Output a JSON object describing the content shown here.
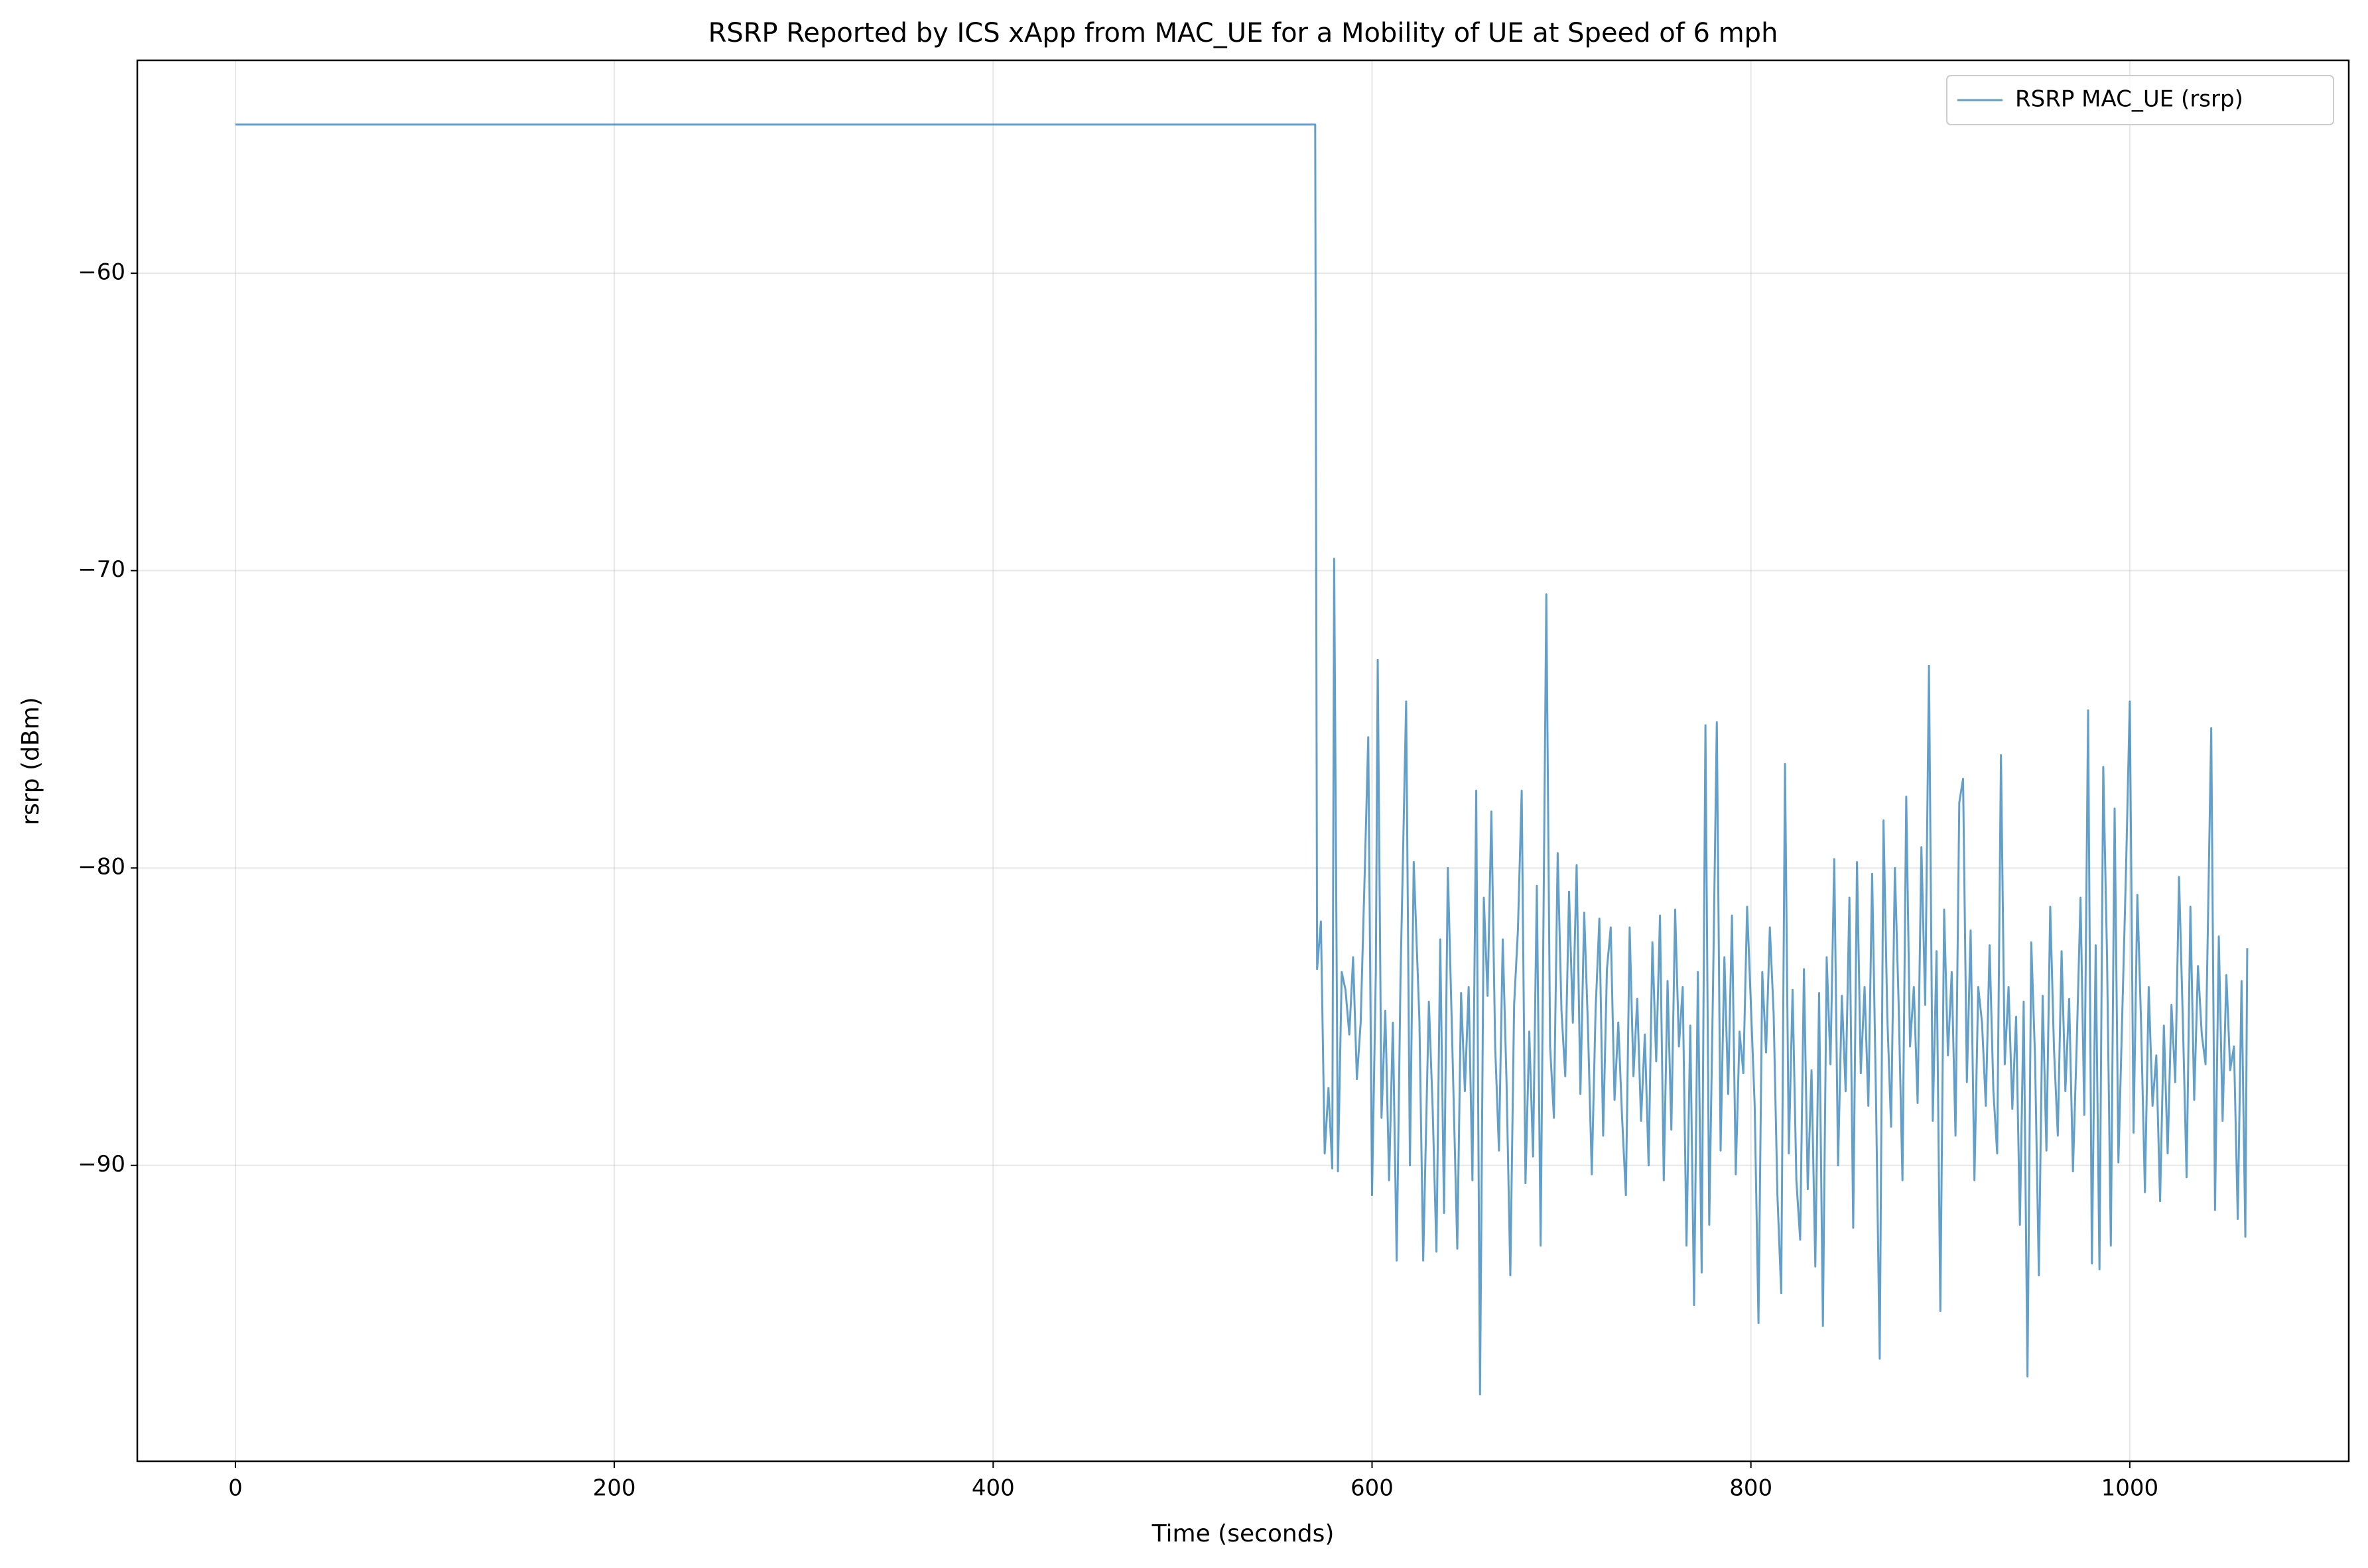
{
  "chart_data": {
    "type": "line",
    "title": "RSRP Reported by ICS xApp from MAC_UE for a Mobility of UE at Speed of 6 mph",
    "x_label": "Time (seconds)",
    "y_label": "rsrp (dBm)",
    "xlim": [
      -51.8,
      1115.6
    ],
    "ylim": [
      -99.95,
      -52.84
    ],
    "xticks": [
      0,
      200,
      400,
      600,
      800,
      1000
    ],
    "yticks": [
      {
        "value": -90,
        "label": "−90"
      },
      {
        "value": -80,
        "label": "−80"
      },
      {
        "value": -70,
        "label": "−70"
      },
      {
        "value": -60,
        "label": "−60"
      }
    ],
    "grid": true,
    "legend": "upper right",
    "x": [
      0,
      570,
      571,
      573,
      575,
      577,
      579,
      580,
      582,
      584,
      586,
      588,
      590,
      592,
      594,
      596,
      598,
      600,
      602,
      603,
      605,
      607,
      609,
      611,
      613,
      615,
      618,
      620,
      622,
      625,
      627,
      630,
      632,
      634,
      636,
      638,
      640,
      642,
      645,
      647,
      649,
      651,
      653,
      655,
      657,
      659,
      661,
      663,
      665,
      667,
      669,
      671,
      673,
      675,
      677,
      679,
      681,
      683,
      685,
      687,
      689,
      692,
      694,
      696,
      698,
      700,
      702,
      704,
      706,
      708,
      710,
      712,
      714,
      716,
      718,
      720,
      722,
      724,
      726,
      728,
      730,
      732,
      734,
      736,
      738,
      740,
      742,
      744,
      746,
      748,
      750,
      752,
      754,
      756,
      758,
      760,
      762,
      764,
      766,
      768,
      770,
      772,
      774,
      776,
      778,
      780,
      782,
      784,
      786,
      788,
      790,
      792,
      794,
      796,
      798,
      800,
      802,
      804,
      806,
      808,
      810,
      812,
      814,
      816,
      818,
      820,
      822,
      824,
      826,
      828,
      830,
      832,
      834,
      836,
      838,
      840,
      842,
      844,
      846,
      848,
      850,
      852,
      854,
      856,
      858,
      860,
      862,
      864,
      866,
      868,
      870,
      872,
      874,
      876,
      878,
      880,
      882,
      884,
      886,
      888,
      890,
      892,
      894,
      896,
      898,
      900,
      902,
      904,
      906,
      908,
      910,
      912,
      914,
      916,
      918,
      920,
      922,
      924,
      926,
      928,
      930,
      932,
      934,
      936,
      938,
      940,
      942,
      944,
      946,
      948,
      950,
      952,
      954,
      956,
      958,
      960,
      962,
      964,
      966,
      968,
      970,
      972,
      974,
      976,
      978,
      980,
      982,
      984,
      986,
      988,
      990,
      992,
      994,
      996,
      998,
      1000,
      1002,
      1004,
      1006,
      1008,
      1010,
      1012,
      1014,
      1016,
      1018,
      1020,
      1022,
      1024,
      1026,
      1028,
      1030,
      1032,
      1034,
      1036,
      1038,
      1040,
      1043,
      1045,
      1047,
      1049,
      1051,
      1053,
      1055,
      1057,
      1059,
      1061,
      1062
    ],
    "series": [
      {
        "name": "RSRP MAC_UE (rsrp)",
        "color": "#1f77b4",
        "values": [
          -55,
          -55,
          -83.4,
          -81.8,
          -89.6,
          -87.4,
          -90.1,
          -69.6,
          -90.2,
          -83.5,
          -84.1,
          -85.6,
          -83.0,
          -87.1,
          -85.2,
          -80.5,
          -75.6,
          -91.0,
          -83.5,
          -73.0,
          -88.4,
          -84.8,
          -90.5,
          -85.2,
          -93.2,
          -83.8,
          -74.4,
          -90.0,
          -79.8,
          -85.1,
          -93.2,
          -84.5,
          -88.1,
          -92.9,
          -82.4,
          -91.6,
          -80.0,
          -85.0,
          -92.8,
          -84.2,
          -87.5,
          -84.0,
          -90.5,
          -77.4,
          -97.7,
          -81.0,
          -84.3,
          -78.1,
          -86.0,
          -89.5,
          -82.4,
          -87.2,
          -93.7,
          -84.6,
          -82.1,
          -77.4,
          -90.6,
          -85.5,
          -89.7,
          -80.6,
          -92.7,
          -70.8,
          -86.0,
          -88.4,
          -79.5,
          -84.8,
          -87.0,
          -80.8,
          -85.2,
          -79.9,
          -87.6,
          -81.5,
          -85.4,
          -90.3,
          -84.8,
          -81.7,
          -89.0,
          -83.4,
          -82.0,
          -87.8,
          -85.2,
          -88.4,
          -91.0,
          -82.0,
          -87.0,
          -84.4,
          -88.5,
          -85.6,
          -90.0,
          -82.5,
          -86.5,
          -81.6,
          -90.5,
          -83.8,
          -88.8,
          -81.4,
          -86.0,
          -84.0,
          -92.7,
          -85.3,
          -94.7,
          -83.5,
          -93.6,
          -75.2,
          -92.0,
          -84.0,
          -75.1,
          -89.5,
          -83.0,
          -87.6,
          -81.6,
          -90.3,
          -85.5,
          -86.9,
          -81.3,
          -84.6,
          -88.0,
          -95.3,
          -83.5,
          -86.2,
          -82.0,
          -84.9,
          -91.0,
          -94.3,
          -76.5,
          -89.6,
          -84.1,
          -90.5,
          -92.5,
          -83.4,
          -90.8,
          -86.8,
          -93.4,
          -84.2,
          -95.4,
          -83.0,
          -86.6,
          -79.7,
          -90.0,
          -84.3,
          -87.5,
          -81.0,
          -92.1,
          -79.8,
          -86.9,
          -84.0,
          -88.0,
          -80.2,
          -87.6,
          -96.5,
          -78.4,
          -85.0,
          -88.7,
          -80.0,
          -84.6,
          -90.5,
          -77.6,
          -86.0,
          -84.0,
          -87.9,
          -79.3,
          -84.6,
          -73.2,
          -88.5,
          -82.8,
          -94.9,
          -81.4,
          -86.3,
          -83.5,
          -89.0,
          -77.8,
          -77.0,
          -87.2,
          -82.1,
          -90.5,
          -84.0,
          -85.2,
          -88.0,
          -82.6,
          -87.5,
          -89.6,
          -76.2,
          -86.6,
          -84.0,
          -88.1,
          -85.0,
          -92.0,
          -84.5,
          -97.1,
          -82.5,
          -86.4,
          -93.7,
          -84.3,
          -89.5,
          -81.3,
          -86.1,
          -89.0,
          -82.8,
          -87.5,
          -84.4,
          -90.2,
          -85.9,
          -81.0,
          -88.3,
          -74.7,
          -93.3,
          -82.6,
          -93.5,
          -76.6,
          -83.0,
          -92.7,
          -78.0,
          -89.9,
          -85.0,
          -80.1,
          -74.4,
          -88.9,
          -80.9,
          -85.3,
          -90.9,
          -84.0,
          -88.0,
          -86.3,
          -91.2,
          -85.3,
          -89.6,
          -84.6,
          -87.2,
          -80.3,
          -85.1,
          -90.4,
          -81.3,
          -87.8,
          -83.3,
          -85.6,
          -86.6,
          -75.3,
          -91.5,
          -82.3,
          -88.5,
          -83.6,
          -86.8,
          -86.0,
          -91.8,
          -83.8,
          -92.4,
          -82.7
        ]
      }
    ]
  }
}
